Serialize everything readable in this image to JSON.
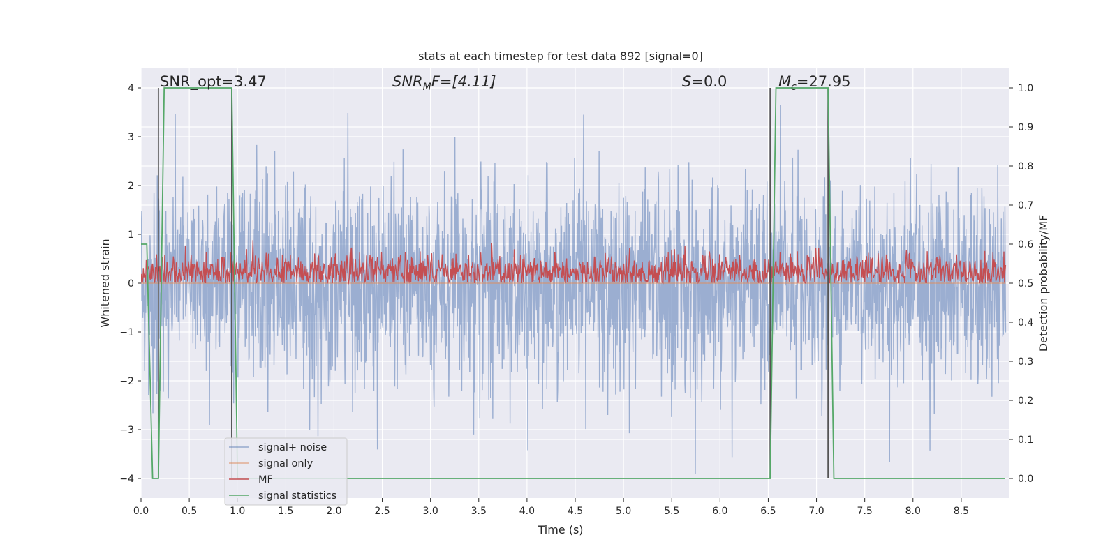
{
  "chart_data": {
    "type": "line",
    "title": "stats at each timestep for test data 892 [signal=0]",
    "xlabel": "Time (s)",
    "ylabel": "Whitened strain",
    "y2label": "Detection probability/MF",
    "xlim": [
      0.0,
      9.0
    ],
    "ylim": [
      -4.4,
      4.4
    ],
    "y2lim": [
      -0.05,
      1.05
    ],
    "xticks": [
      0.0,
      0.5,
      1.0,
      1.5,
      2.0,
      2.5,
      3.0,
      3.5,
      4.0,
      4.5,
      5.0,
      5.5,
      6.0,
      6.5,
      7.0,
      7.5,
      8.0,
      8.5
    ],
    "xtick_labels": [
      "0.0",
      "0.5",
      "1.0",
      "1.5",
      "2.0",
      "2.5",
      "3.0",
      "3.5",
      "4.0",
      "4.5",
      "5.0",
      "5.5",
      "6.0",
      "6.5",
      "7.0",
      "7.5",
      "8.0",
      "8.5"
    ],
    "yticks": [
      -4,
      -3,
      -2,
      -1,
      0,
      1,
      2,
      3,
      4
    ],
    "ytick_labels": [
      "−4",
      "−3",
      "−2",
      "−1",
      "0",
      "1",
      "2",
      "3",
      "4"
    ],
    "y2ticks": [
      0.0,
      0.1,
      0.2,
      0.3,
      0.4,
      0.5,
      0.6,
      0.7,
      0.8,
      0.9,
      1.0
    ],
    "y2tick_labels": [
      "0.0",
      "0.1",
      "0.2",
      "0.3",
      "0.4",
      "0.5",
      "0.6",
      "0.7",
      "0.8",
      "0.9",
      "1.0"
    ],
    "grid": true,
    "legend_position": "lower-left",
    "annotations": {
      "snr_opt": "SNR_opt=3.47",
      "snr_mf_label": "SNR",
      "snr_mf_sub": "M",
      "snr_mf_rest": "F=[4.11]",
      "s_label": "S",
      "s_rest": "=0.0",
      "mc_label": "M",
      "mc_sub": "c",
      "mc_rest": "=27.95"
    },
    "colors": {
      "background": "#eaeaf2",
      "grid": "#ffffff",
      "signal_noise": "#4c72b0",
      "signal_only": "#dd8452",
      "mf": "#c44e52",
      "signal_statistics": "#55a868",
      "vlines": "#555555"
    },
    "series": [
      {
        "name": "signal+ noise",
        "axis": "left",
        "description": "whitened noise, amplitude approx ±2, peaks near ±3.5"
      },
      {
        "name": "signal only",
        "axis": "left",
        "values_const": 0
      },
      {
        "name": "MF",
        "axis": "right",
        "baseline": 0.53,
        "range": [
          0.5,
          0.62
        ]
      },
      {
        "name": "signal statistics",
        "axis": "right",
        "x": [
          0.0,
          0.06,
          0.12,
          0.18,
          0.24,
          0.94,
          1.0,
          6.52,
          6.58,
          7.12,
          7.18,
          8.95
        ],
        "values": [
          0.6,
          0.6,
          0.0,
          0.0,
          1.0,
          1.0,
          0.0,
          0.0,
          1.0,
          1.0,
          0.0,
          0.0
        ]
      }
    ],
    "vlines_x": [
      0.18,
      0.94,
      6.52,
      7.12
    ],
    "vlines_y": [
      -4.0,
      4.0
    ]
  }
}
